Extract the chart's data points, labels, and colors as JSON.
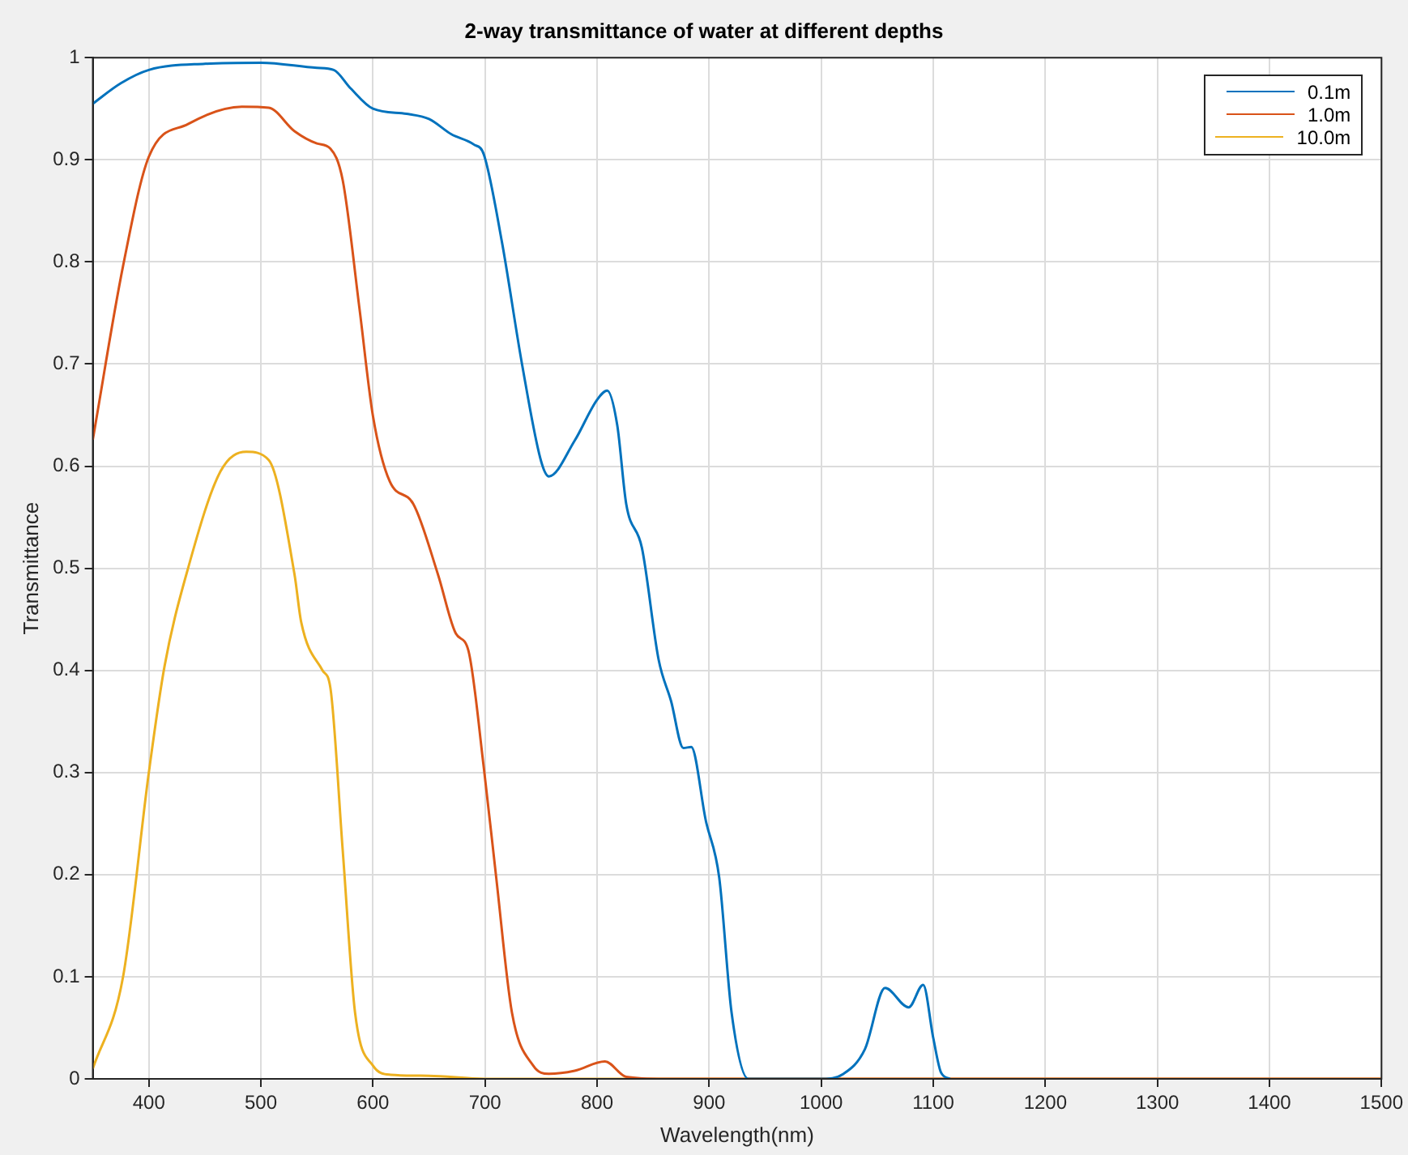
{
  "chart_data": {
    "type": "line",
    "title": "2-way transmittance of water at different depths",
    "xlabel": "Wavelength(nm)",
    "ylabel": "Transmittance",
    "xlim": [
      350,
      1500
    ],
    "xticks": [
      400,
      500,
      600,
      700,
      800,
      900,
      1000,
      1100,
      1200,
      1300,
      1400,
      1500
    ],
    "ylim": [
      0,
      1
    ],
    "yticks": [
      0,
      0.1,
      0.2,
      0.3,
      0.4,
      0.5,
      0.6,
      0.7,
      0.8,
      0.9,
      1
    ],
    "grid": true,
    "legend": "top right",
    "marker": "none",
    "line_style": "solid",
    "series": [
      {
        "name": "0.1m",
        "color": "#0072bd",
        "x": [
          350,
          375,
          400,
          450,
          500,
          550,
          565,
          580,
          600,
          630,
          650,
          670,
          690,
          699,
          715,
          733,
          750,
          757,
          780,
          800,
          809,
          818,
          826,
          840,
          855,
          866,
          877,
          884,
          897,
          909,
          920,
          935,
          1000,
          1020,
          1039,
          1057,
          1078,
          1091,
          1100,
          1107,
          1115
        ],
        "values": [
          0.955,
          0.975,
          0.988,
          0.994,
          0.995,
          0.99,
          0.988,
          0.97,
          0.95,
          0.945,
          0.94,
          0.925,
          0.915,
          0.905,
          0.82,
          0.7,
          0.605,
          0.59,
          0.625,
          0.665,
          0.674,
          0.64,
          0.563,
          0.52,
          0.41,
          0.37,
          0.324,
          0.325,
          0.253,
          0.197,
          0.065,
          0,
          0,
          0.005,
          0.029,
          0.089,
          0.07,
          0.092,
          0.04,
          0.006,
          0
        ]
      },
      {
        "name": "1.0m",
        "color": "#d95319",
        "x": [
          350,
          377,
          400,
          435,
          483,
          507,
          530,
          550,
          562,
          573,
          588,
          600,
          615,
          636,
          658,
          674,
          685,
          699,
          710,
          724,
          743,
          757,
          780,
          807,
          826,
          860,
          1500
        ],
        "values": [
          0.626,
          0.796,
          0.903,
          0.935,
          0.952,
          0.951,
          0.928,
          0.916,
          0.911,
          0.88,
          0.754,
          0.649,
          0.585,
          0.563,
          0.494,
          0.436,
          0.42,
          0.304,
          0.197,
          0.065,
          0.013,
          0.005,
          0.008,
          0.017,
          0.002,
          0,
          0
        ]
      },
      {
        "name": "10.0m",
        "color": "#edb120",
        "x": [
          350,
          377,
          400,
          414,
          435,
          464,
          487,
          507,
          530,
          536,
          555,
          562,
          573,
          584,
          600,
          616,
          650,
          700,
          1500
        ],
        "values": [
          0.01,
          0.1,
          0.3,
          0.404,
          0.5,
          0.595,
          0.614,
          0.606,
          0.494,
          0.447,
          0.4,
          0.383,
          0.224,
          0.065,
          0.013,
          0.004,
          0.003,
          0,
          0
        ]
      }
    ]
  }
}
